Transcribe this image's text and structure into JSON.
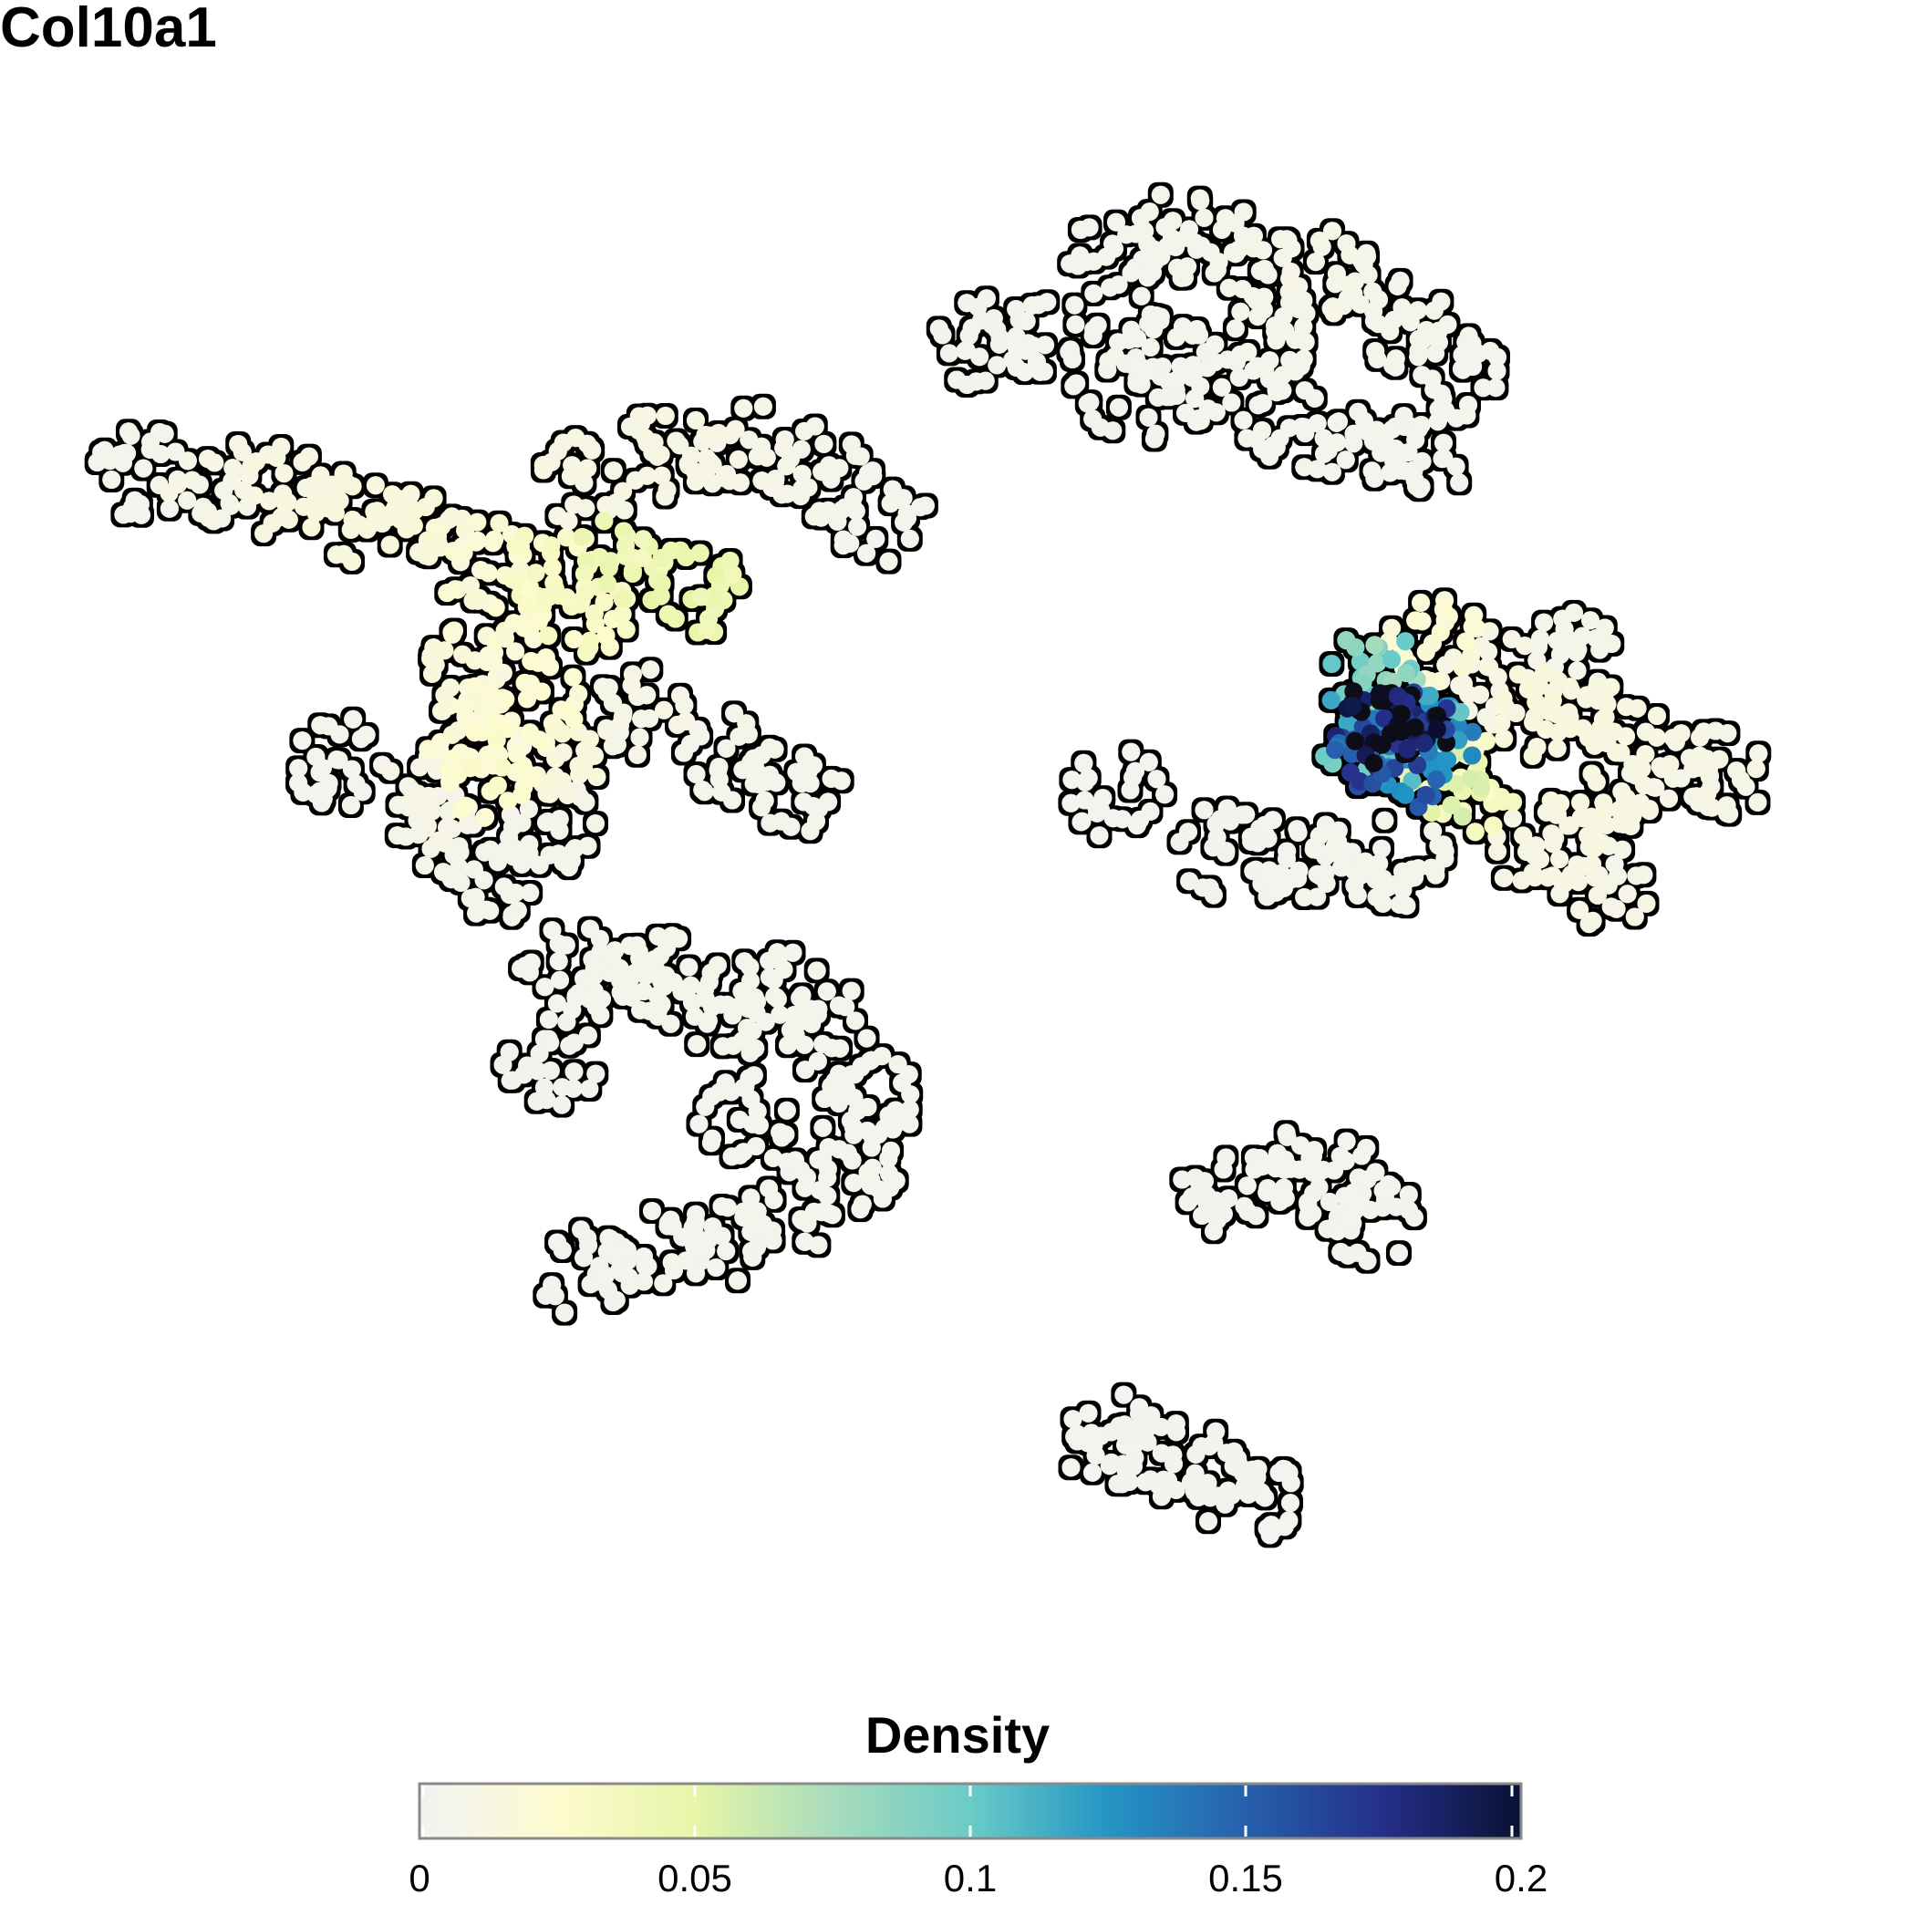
{
  "chart_data": {
    "type": "scatter",
    "title": "Col10a1",
    "subtitle": "",
    "xlabel": "",
    "ylabel": "",
    "grid": false,
    "axes_visible": false,
    "color_scale": {
      "title": "Density",
      "range": [
        0,
        0.2
      ],
      "ticks": [
        0,
        0.05,
        0.1,
        0.15,
        0.2
      ],
      "tick_labels": [
        "0",
        "0.05",
        "0.1",
        "0.15",
        "0.2"
      ],
      "stops": [
        {
          "value": 0.0,
          "color": "#f2f2f2"
        },
        {
          "value": 0.025,
          "color": "#fdfbcf"
        },
        {
          "value": 0.05,
          "color": "#e7f5a8"
        },
        {
          "value": 0.075,
          "color": "#a8dcbc"
        },
        {
          "value": 0.1,
          "color": "#6acbc7"
        },
        {
          "value": 0.125,
          "color": "#2495c4"
        },
        {
          "value": 0.15,
          "color": "#2660ad"
        },
        {
          "value": 0.175,
          "color": "#252f8a"
        },
        {
          "value": 0.2,
          "color": "#081232"
        },
        {
          "value": 0.21,
          "color": "#0a0a14"
        }
      ],
      "legend_placement": "bottom"
    },
    "point_outline_color": "#000000",
    "clusters": [
      {
        "id": "left-main",
        "points": [
          {
            "x": 0.6,
            "y": 7.4,
            "d": 0.004
          },
          {
            "x": 1.4,
            "y": 7.3,
            "d": 0.008
          },
          {
            "x": 2.2,
            "y": 7.2,
            "d": 0.012
          },
          {
            "x": 3.0,
            "y": 7.0,
            "d": 0.014
          },
          {
            "x": 3.8,
            "y": 6.8,
            "d": 0.016
          },
          {
            "x": 4.4,
            "y": 6.6,
            "d": 0.02
          },
          {
            "x": 5.2,
            "y": 6.5,
            "d": 0.03
          },
          {
            "x": 6.0,
            "y": 6.6,
            "d": 0.04
          },
          {
            "x": 6.8,
            "y": 6.3,
            "d": 0.045
          },
          {
            "x": 5.6,
            "y": 6.1,
            "d": 0.03
          },
          {
            "x": 4.6,
            "y": 6.0,
            "d": 0.02
          },
          {
            "x": 4.2,
            "y": 5.5,
            "d": 0.015
          },
          {
            "x": 4.3,
            "y": 5.0,
            "d": 0.02
          },
          {
            "x": 4.5,
            "y": 4.6,
            "d": 0.025
          },
          {
            "x": 5.0,
            "y": 5.3,
            "d": 0.022
          },
          {
            "x": 5.3,
            "y": 4.8,
            "d": 0.015
          },
          {
            "x": 3.8,
            "y": 4.4,
            "d": 0.008
          },
          {
            "x": 4.0,
            "y": 4.0,
            "d": 0.006
          },
          {
            "x": 4.6,
            "y": 3.7,
            "d": 0.005
          },
          {
            "x": 5.2,
            "y": 4.1,
            "d": 0.006
          },
          {
            "x": 2.8,
            "y": 4.7,
            "d": 0.004
          },
          {
            "x": 6.2,
            "y": 5.2,
            "d": 0.008
          },
          {
            "x": 7.2,
            "y": 4.8,
            "d": 0.006
          },
          {
            "x": 8.0,
            "y": 4.5,
            "d": 0.005
          },
          {
            "x": 5.6,
            "y": 7.3,
            "d": 0.01
          },
          {
            "x": 6.5,
            "y": 7.6,
            "d": 0.01
          },
          {
            "x": 7.4,
            "y": 7.6,
            "d": 0.008
          },
          {
            "x": 8.2,
            "y": 7.4,
            "d": 0.006
          },
          {
            "x": 8.9,
            "y": 7.0,
            "d": 0.004
          }
        ]
      },
      {
        "id": "left-lower",
        "points": [
          {
            "x": 5.4,
            "y": 2.8,
            "d": 0.004
          },
          {
            "x": 6.0,
            "y": 2.6,
            "d": 0.005
          },
          {
            "x": 6.6,
            "y": 2.7,
            "d": 0.006
          },
          {
            "x": 7.2,
            "y": 2.3,
            "d": 0.005
          },
          {
            "x": 7.8,
            "y": 2.6,
            "d": 0.005
          },
          {
            "x": 8.4,
            "y": 2.2,
            "d": 0.004
          },
          {
            "x": 8.8,
            "y": 1.6,
            "d": 0.004
          },
          {
            "x": 8.6,
            "y": 1.0,
            "d": 0.004
          },
          {
            "x": 7.9,
            "y": 0.6,
            "d": 0.004
          },
          {
            "x": 7.2,
            "y": 0.3,
            "d": 0.004
          },
          {
            "x": 6.4,
            "y": 0.2,
            "d": 0.004
          },
          {
            "x": 5.6,
            "y": 0.0,
            "d": 0.003
          },
          {
            "x": 7.4,
            "y": 1.4,
            "d": 0.004
          },
          {
            "x": 5.2,
            "y": 1.9,
            "d": 0.003
          }
        ]
      },
      {
        "id": "top-right",
        "points": [
          {
            "x": 10.1,
            "y": 8.6,
            "d": 0.003
          },
          {
            "x": 10.9,
            "y": 8.6,
            "d": 0.004
          },
          {
            "x": 11.6,
            "y": 9.4,
            "d": 0.004
          },
          {
            "x": 12.4,
            "y": 9.6,
            "d": 0.005
          },
          {
            "x": 13.2,
            "y": 9.4,
            "d": 0.006
          },
          {
            "x": 14.0,
            "y": 9.2,
            "d": 0.007
          },
          {
            "x": 14.8,
            "y": 8.8,
            "d": 0.005
          },
          {
            "x": 15.4,
            "y": 8.3,
            "d": 0.004
          },
          {
            "x": 15.2,
            "y": 7.6,
            "d": 0.004
          },
          {
            "x": 14.4,
            "y": 7.6,
            "d": 0.004
          },
          {
            "x": 13.6,
            "y": 7.8,
            "d": 0.004
          },
          {
            "x": 12.8,
            "y": 8.2,
            "d": 0.004
          },
          {
            "x": 12.0,
            "y": 8.6,
            "d": 0.004
          },
          {
            "x": 11.8,
            "y": 8.1,
            "d": 0.003
          },
          {
            "x": 13.4,
            "y": 8.7,
            "d": 0.005
          }
        ]
      },
      {
        "id": "mid-right",
        "points": [
          {
            "x": 14.7,
            "y": 5.1,
            "d": 0.2
          },
          {
            "x": 14.9,
            "y": 5.0,
            "d": 0.19
          },
          {
            "x": 14.6,
            "y": 4.9,
            "d": 0.16
          },
          {
            "x": 14.8,
            "y": 4.7,
            "d": 0.14
          },
          {
            "x": 15.1,
            "y": 4.9,
            "d": 0.12
          },
          {
            "x": 14.4,
            "y": 5.0,
            "d": 0.11
          },
          {
            "x": 14.5,
            "y": 5.5,
            "d": 0.09
          },
          {
            "x": 15.3,
            "y": 4.6,
            "d": 0.05
          },
          {
            "x": 15.6,
            "y": 4.5,
            "d": 0.03
          },
          {
            "x": 16.4,
            "y": 5.2,
            "d": 0.015
          },
          {
            "x": 17.2,
            "y": 5.0,
            "d": 0.012
          },
          {
            "x": 17.8,
            "y": 4.6,
            "d": 0.01
          },
          {
            "x": 18.4,
            "y": 4.6,
            "d": 0.008
          },
          {
            "x": 17.0,
            "y": 4.2,
            "d": 0.012
          },
          {
            "x": 16.4,
            "y": 3.9,
            "d": 0.01
          },
          {
            "x": 17.2,
            "y": 3.6,
            "d": 0.008
          },
          {
            "x": 16.8,
            "y": 5.7,
            "d": 0.006
          },
          {
            "x": 15.2,
            "y": 5.8,
            "d": 0.02
          },
          {
            "x": 15.8,
            "y": 5.5,
            "d": 0.01
          },
          {
            "x": 13.6,
            "y": 3.8,
            "d": 0.004
          },
          {
            "x": 14.2,
            "y": 3.7,
            "d": 0.004
          },
          {
            "x": 14.8,
            "y": 3.8,
            "d": 0.005
          },
          {
            "x": 12.8,
            "y": 3.9,
            "d": 0.003
          },
          {
            "x": 11.6,
            "y": 4.4,
            "d": 0.002
          }
        ]
      },
      {
        "id": "bottom-small",
        "points": [
          {
            "x": 12.8,
            "y": 0.8,
            "d": 0.003
          },
          {
            "x": 13.5,
            "y": 0.9,
            "d": 0.004
          },
          {
            "x": 14.1,
            "y": 0.8,
            "d": 0.004
          },
          {
            "x": 14.5,
            "y": 0.5,
            "d": 0.003
          }
        ]
      },
      {
        "id": "bottom-strip",
        "points": [
          {
            "x": 11.4,
            "y": -1.5,
            "d": 0.002
          },
          {
            "x": 12.0,
            "y": -1.7,
            "d": 0.003
          },
          {
            "x": 12.6,
            "y": -1.9,
            "d": 0.003
          },
          {
            "x": 13.2,
            "y": -2.1,
            "d": 0.002
          }
        ]
      }
    ]
  }
}
